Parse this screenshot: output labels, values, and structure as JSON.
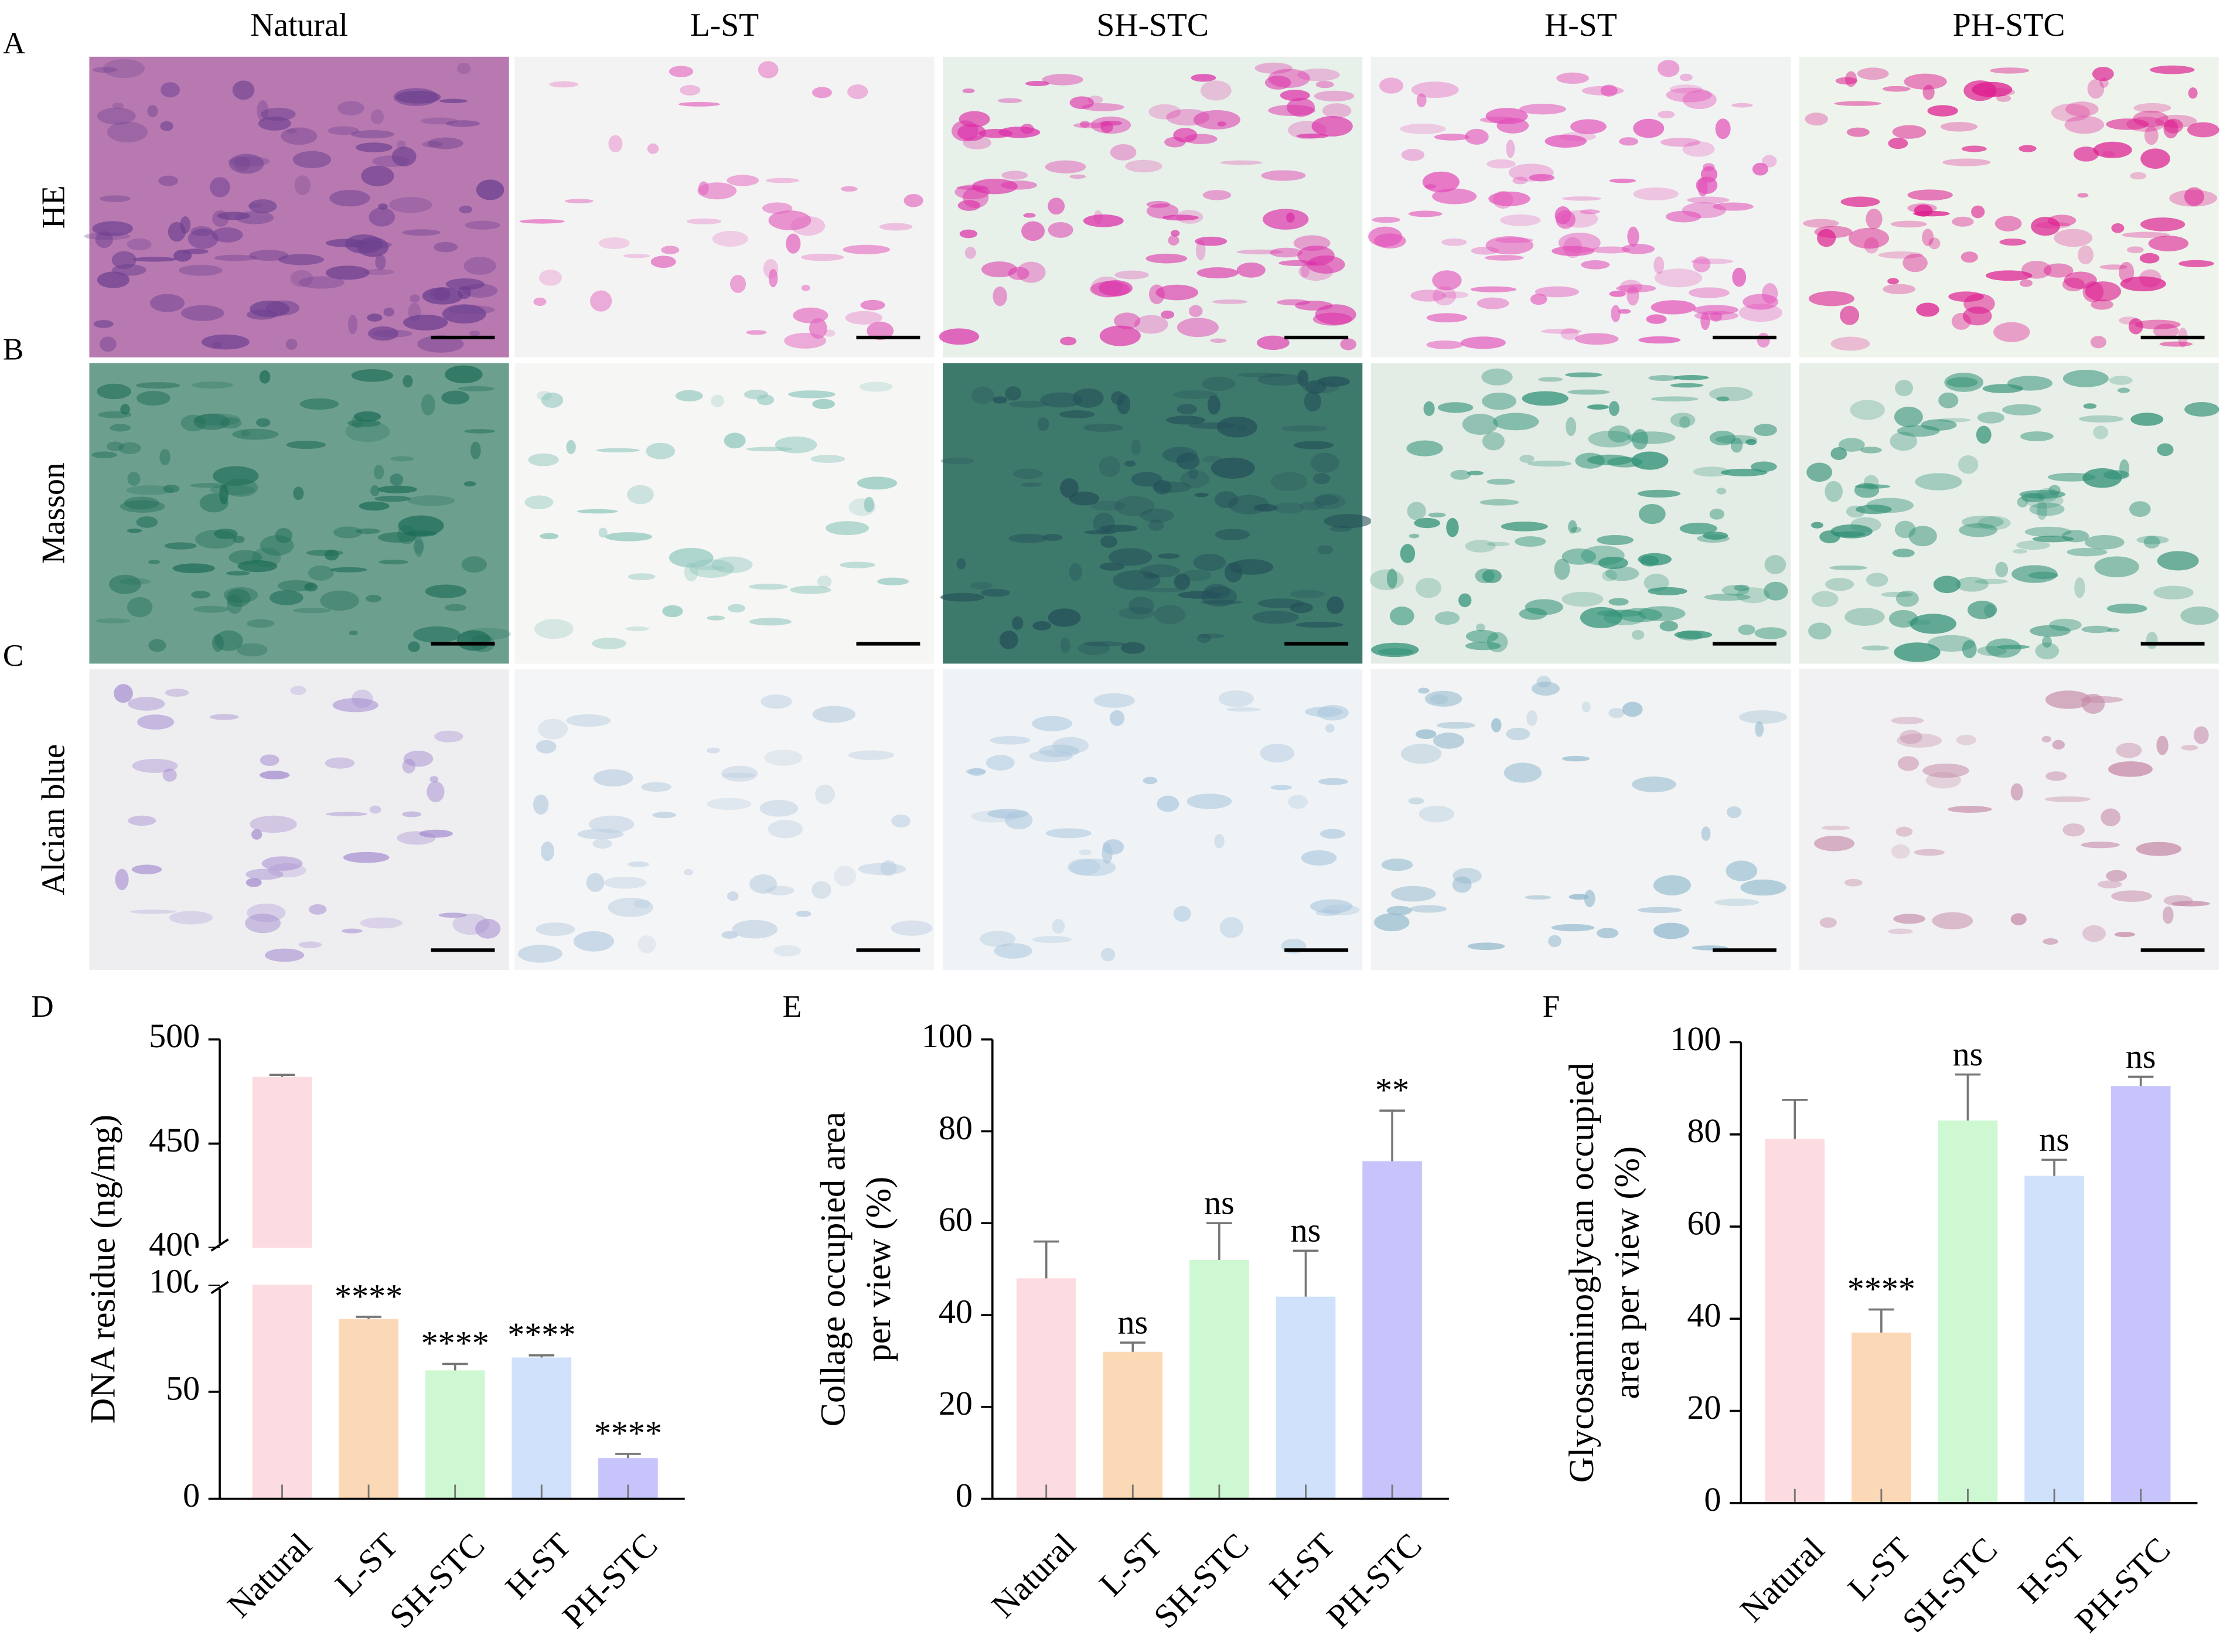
{
  "panels": {
    "columns": [
      "Natural",
      "L-ST",
      "SH-STC",
      "H-ST",
      "PH-STC"
    ],
    "rows": [
      {
        "letter": "A",
        "label": "HE"
      },
      {
        "letter": "B",
        "label": "Masson"
      },
      {
        "letter": "C",
        "label": "Alcian blue"
      }
    ]
  },
  "chart_data": [
    {
      "type": "bar",
      "panel": "D",
      "ylabel": [
        "DNA residue (ng/mg)"
      ],
      "categories": [
        "Natural",
        "L-ST",
        "SH-STC",
        "H-ST",
        "PH-STC"
      ],
      "values": [
        482,
        84,
        60,
        66,
        19
      ],
      "errors": [
        1,
        1,
        3,
        1,
        2
      ],
      "annotations": [
        null,
        "****",
        "****",
        "****",
        "****"
      ],
      "colors": [
        "#fcdce0",
        "#fcd9b6",
        "#cdf8d1",
        "#cfe1fb",
        "#c6c4fb"
      ],
      "ylim": [
        0,
        500
      ],
      "ybreak": [
        100,
        400
      ],
      "yticks": [
        0,
        50,
        100,
        400,
        450,
        500
      ]
    },
    {
      "type": "bar",
      "panel": "E",
      "ylabel": [
        "Collage occupied area",
        "per view (%)"
      ],
      "categories": [
        "Natural",
        "L-ST",
        "SH-STC",
        "H-ST",
        "PH-STC"
      ],
      "values": [
        48,
        32,
        52,
        44,
        73.5
      ],
      "errors": [
        8,
        2,
        8,
        10,
        11
      ],
      "annotations": [
        null,
        "ns",
        "ns",
        "ns",
        "**"
      ],
      "colors": [
        "#fcdce0",
        "#fcd9b6",
        "#cdf8d1",
        "#cfe1fb",
        "#c6c4fb"
      ],
      "ylim": [
        0,
        100
      ],
      "yticks": [
        0,
        20,
        40,
        60,
        80,
        100
      ]
    },
    {
      "type": "bar",
      "panel": "F",
      "ylabel": [
        "Glycosaminoglycan occupied",
        "area per view (%)"
      ],
      "categories": [
        "Natural",
        "L-ST",
        "SH-STC",
        "H-ST",
        "PH-STC"
      ],
      "values": [
        79,
        37,
        83,
        71,
        90.5
      ],
      "errors": [
        8.5,
        5,
        10,
        3.5,
        2
      ],
      "annotations": [
        null,
        "****",
        "ns",
        "ns",
        "ns"
      ],
      "colors": [
        "#fcdce0",
        "#fcd9b6",
        "#cdf8d1",
        "#cfe1fb",
        "#c6c4fb"
      ],
      "ylim": [
        0,
        100
      ],
      "yticks": [
        0,
        20,
        40,
        60,
        80,
        100
      ]
    }
  ]
}
